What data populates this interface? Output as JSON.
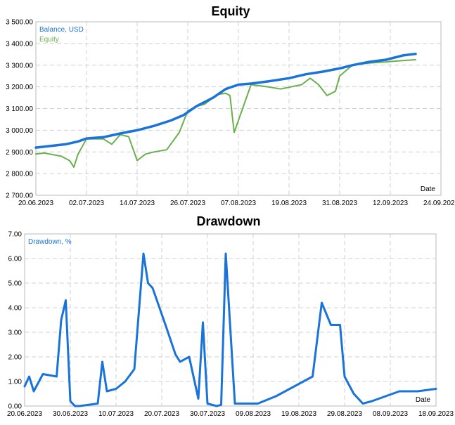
{
  "chart_data": [
    {
      "type": "line",
      "title": "Equity",
      "xlabel": "Date",
      "x_ticks": [
        "20.06.2023",
        "02.07.2023",
        "14.07.2023",
        "26.07.2023",
        "07.08.2023",
        "19.08.2023",
        "31.08.2023",
        "12.09.2023",
        "24.09.2023"
      ],
      "xlim": [
        "2023-06-20",
        "2023-09-24"
      ],
      "ylim": [
        2700,
        3500
      ],
      "y_ticks": [
        "2 700.00",
        "2 800.00",
        "2 900.00",
        "3 000.00",
        "3 100.00",
        "3 200.00",
        "3 300.00",
        "3 400.00",
        "3 500.00"
      ],
      "grid": true,
      "legend_position": "top-left",
      "series": [
        {
          "name": "Balance, USD",
          "color": "#1a73d9",
          "x": [
            "2023-06-20",
            "2023-06-27",
            "2023-06-30",
            "2023-07-02",
            "2023-07-06",
            "2023-07-10",
            "2023-07-14",
            "2023-07-18",
            "2023-07-22",
            "2023-07-25",
            "2023-07-28",
            "2023-08-01",
            "2023-08-04",
            "2023-08-07",
            "2023-08-10",
            "2023-08-14",
            "2023-08-19",
            "2023-08-23",
            "2023-08-27",
            "2023-08-31",
            "2023-09-03",
            "2023-09-07",
            "2023-09-11",
            "2023-09-15",
            "2023-09-18"
          ],
          "values": [
            2920,
            2935,
            2948,
            2962,
            2968,
            2985,
            3000,
            3020,
            3045,
            3070,
            3110,
            3150,
            3190,
            3210,
            3215,
            3225,
            3240,
            3258,
            3270,
            3285,
            3300,
            3315,
            3325,
            3345,
            3352
          ]
        },
        {
          "name": "Equity",
          "color": "#6ab04c",
          "x": [
            "2023-06-20",
            "2023-06-22",
            "2023-06-26",
            "2023-06-28",
            "2023-06-29",
            "2023-06-30",
            "2023-07-02",
            "2023-07-06",
            "2023-07-08",
            "2023-07-10",
            "2023-07-12",
            "2023-07-14",
            "2023-07-16",
            "2023-07-18",
            "2023-07-21",
            "2023-07-24",
            "2023-07-26",
            "2023-07-28",
            "2023-07-30",
            "2023-08-02",
            "2023-08-04",
            "2023-08-05",
            "2023-08-06",
            "2023-08-10",
            "2023-08-14",
            "2023-08-17",
            "2023-08-22",
            "2023-08-24",
            "2023-08-26",
            "2023-08-28",
            "2023-08-30",
            "2023-08-31",
            "2023-09-03",
            "2023-09-07",
            "2023-09-11",
            "2023-09-14",
            "2023-09-18"
          ],
          "values": [
            2890,
            2895,
            2880,
            2860,
            2830,
            2890,
            2960,
            2960,
            2935,
            2980,
            2970,
            2860,
            2890,
            2900,
            2910,
            2990,
            3090,
            3110,
            3120,
            3165,
            3170,
            3160,
            2990,
            3210,
            3200,
            3190,
            3210,
            3240,
            3210,
            3160,
            3180,
            3250,
            3300,
            3310,
            3315,
            3320,
            3325
          ]
        }
      ]
    },
    {
      "type": "line",
      "title": "Drawdown",
      "xlabel": "Date",
      "x_ticks": [
        "20.06.2023",
        "30.06.2023",
        "10.07.2023",
        "20.07.2023",
        "30.07.2023",
        "09.08.2023",
        "19.08.2023",
        "29.08.2023",
        "08.09.2023",
        "18.09.2023"
      ],
      "xlim": [
        "2023-06-20",
        "2023-09-18"
      ],
      "ylim": [
        0,
        7
      ],
      "y_ticks": [
        "0.00",
        "1.00",
        "2.00",
        "3.00",
        "4.00",
        "5.00",
        "6.00",
        "7.00"
      ],
      "grid": true,
      "legend_position": "top-left",
      "series": [
        {
          "name": "Drawdown, %",
          "color": "#1a73d9",
          "x": [
            "2023-06-20",
            "2023-06-21",
            "2023-06-22",
            "2023-06-24",
            "2023-06-27",
            "2023-06-28",
            "2023-06-29",
            "2023-06-30",
            "2023-07-01",
            "2023-07-02",
            "2023-07-06",
            "2023-07-07",
            "2023-07-08",
            "2023-07-10",
            "2023-07-12",
            "2023-07-14",
            "2023-07-16",
            "2023-07-17",
            "2023-07-18",
            "2023-07-21",
            "2023-07-23",
            "2023-07-24",
            "2023-07-26",
            "2023-07-28",
            "2023-07-29",
            "2023-07-30",
            "2023-08-01",
            "2023-08-02",
            "2023-08-03",
            "2023-08-05",
            "2023-08-10",
            "2023-08-14",
            "2023-08-18",
            "2023-08-22",
            "2023-08-24",
            "2023-08-26",
            "2023-08-28",
            "2023-08-29",
            "2023-08-31",
            "2023-09-02",
            "2023-09-04",
            "2023-09-07",
            "2023-09-10",
            "2023-09-14",
            "2023-09-18"
          ],
          "values": [
            0.8,
            1.2,
            0.6,
            1.3,
            1.2,
            3.5,
            4.3,
            0.2,
            0.0,
            0.0,
            0.1,
            1.8,
            0.6,
            0.7,
            1.0,
            1.5,
            6.2,
            5.0,
            4.8,
            3.2,
            2.1,
            1.8,
            2.0,
            0.3,
            3.4,
            0.1,
            0.0,
            0.05,
            6.2,
            0.1,
            0.1,
            0.4,
            0.8,
            1.2,
            4.2,
            3.3,
            3.3,
            1.2,
            0.5,
            0.1,
            0.2,
            0.4,
            0.6,
            0.6,
            0.7
          ]
        }
      ]
    }
  ]
}
